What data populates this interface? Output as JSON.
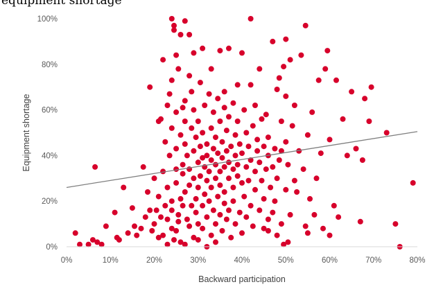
{
  "chart_data": {
    "type": "scatter",
    "title": "equipment shortage",
    "xlabel": "Backward participation",
    "ylabel": "Equipment shortage",
    "xlim": [
      0,
      0.8
    ],
    "ylim": [
      0,
      1
    ],
    "x_ticks": [
      "0%",
      "10%",
      "20%",
      "30%",
      "40%",
      "50%",
      "60%",
      "70%",
      "80%"
    ],
    "y_ticks": [
      "0%",
      "20%",
      "40%",
      "60%",
      "80%",
      "100%"
    ],
    "grid": false,
    "legend": "none",
    "point_color": "#d7002b",
    "trendline_color": "#7f7f7f",
    "trendline": {
      "x": [
        0,
        0.8
      ],
      "y": [
        0.26,
        0.505
      ]
    },
    "points": [
      [
        0.02,
        0.06
      ],
      [
        0.03,
        0.01
      ],
      [
        0.05,
        0.01
      ],
      [
        0.06,
        0.03
      ],
      [
        0.065,
        0.35
      ],
      [
        0.07,
        0.02
      ],
      [
        0.08,
        0.01
      ],
      [
        0.09,
        0.09
      ],
      [
        0.11,
        0.15
      ],
      [
        0.115,
        0.04
      ],
      [
        0.12,
        0.03
      ],
      [
        0.13,
        0.26
      ],
      [
        0.14,
        0.06
      ],
      [
        0.15,
        0.17
      ],
      [
        0.155,
        0.09
      ],
      [
        0.16,
        0.05
      ],
      [
        0.17,
        0.08
      ],
      [
        0.175,
        0.35
      ],
      [
        0.18,
        0.13
      ],
      [
        0.185,
        0.24
      ],
      [
        0.19,
        0.7
      ],
      [
        0.19,
        0.16
      ],
      [
        0.195,
        0.07
      ],
      [
        0.2,
        0.3
      ],
      [
        0.2,
        0.1
      ],
      [
        0.205,
        0.16
      ],
      [
        0.21,
        0.04
      ],
      [
        0.21,
        0.55
      ],
      [
        0.21,
        0.22
      ],
      [
        0.215,
        0.13
      ],
      [
        0.215,
        0.56
      ],
      [
        0.22,
        0.05
      ],
      [
        0.22,
        0.33
      ],
      [
        0.22,
        0.82
      ],
      [
        0.225,
        0.18
      ],
      [
        0.225,
        0.46
      ],
      [
        0.23,
        0.01
      ],
      [
        0.23,
        0.12
      ],
      [
        0.23,
        0.62
      ],
      [
        0.23,
        0.26
      ],
      [
        0.235,
        0.67
      ],
      [
        0.235,
        0.4
      ],
      [
        0.24,
        0.08
      ],
      [
        0.24,
        0.2
      ],
      [
        0.24,
        0.73
      ],
      [
        0.24,
        0.16
      ],
      [
        0.24,
        0.52
      ],
      [
        0.24,
        1.0
      ],
      [
        0.245,
        0.95
      ],
      [
        0.245,
        0.97
      ],
      [
        0.245,
        0.03
      ],
      [
        0.25,
        0.28
      ],
      [
        0.25,
        0.43
      ],
      [
        0.25,
        0.07
      ],
      [
        0.25,
        0.59
      ],
      [
        0.25,
        0.34
      ],
      [
        0.25,
        0.84
      ],
      [
        0.255,
        0.14
      ],
      [
        0.255,
        0.78
      ],
      [
        0.255,
        0.11
      ],
      [
        0.26,
        0.21
      ],
      [
        0.26,
        0.49
      ],
      [
        0.26,
        0.93
      ],
      [
        0.26,
        0.02
      ],
      [
        0.265,
        0.32
      ],
      [
        0.265,
        0.61
      ],
      [
        0.265,
        0.18
      ],
      [
        0.265,
        0.36
      ],
      [
        0.27,
        0.99
      ],
      [
        0.27,
        0.45
      ],
      [
        0.27,
        0.64
      ],
      [
        0.27,
        0.24
      ],
      [
        0.27,
        0.01
      ],
      [
        0.27,
        0.55
      ],
      [
        0.275,
        0.12
      ],
      [
        0.275,
        0.4
      ],
      [
        0.28,
        0.75
      ],
      [
        0.28,
        0.27
      ],
      [
        0.28,
        0.09
      ],
      [
        0.28,
        0.93
      ],
      [
        0.28,
        0.34
      ],
      [
        0.285,
        0.52
      ],
      [
        0.285,
        0.18
      ],
      [
        0.285,
        0.68
      ],
      [
        0.29,
        0.42
      ],
      [
        0.29,
        0.04
      ],
      [
        0.29,
        0.85
      ],
      [
        0.29,
        0.3
      ],
      [
        0.29,
        0.6
      ],
      [
        0.295,
        0.15
      ],
      [
        0.295,
        0.21
      ],
      [
        0.295,
        0.48
      ],
      [
        0.3,
        0.37
      ],
      [
        0.3,
        0.1
      ],
      [
        0.3,
        0.26
      ],
      [
        0.3,
        0.55
      ],
      [
        0.3,
        0.03
      ],
      [
        0.305,
        0.44
      ],
      [
        0.305,
        0.31
      ],
      [
        0.305,
        0.72
      ],
      [
        0.31,
        0.18
      ],
      [
        0.31,
        0.39
      ],
      [
        0.31,
        0.87
      ],
      [
        0.31,
        0.08
      ],
      [
        0.31,
        0.5
      ],
      [
        0.315,
        0.23
      ],
      [
        0.315,
        0.35
      ],
      [
        0.315,
        0.62
      ],
      [
        0.32,
        0.13
      ],
      [
        0.32,
        0.0
      ],
      [
        0.32,
        0.29
      ],
      [
        0.32,
        0.45
      ],
      [
        0.32,
        0.4
      ],
      [
        0.325,
        0.2
      ],
      [
        0.325,
        0.67
      ],
      [
        0.325,
        0.33
      ],
      [
        0.33,
        0.05
      ],
      [
        0.33,
        0.52
      ],
      [
        0.33,
        0.26
      ],
      [
        0.33,
        0.78
      ],
      [
        0.33,
        0.38
      ],
      [
        0.335,
        0.16
      ],
      [
        0.335,
        0.43
      ],
      [
        0.335,
        0.59
      ],
      [
        0.34,
        0.1
      ],
      [
        0.34,
        0.3
      ],
      [
        0.34,
        0.36
      ],
      [
        0.34,
        0.48
      ],
      [
        0.34,
        0.02
      ],
      [
        0.345,
        0.22
      ],
      [
        0.345,
        0.41
      ],
      [
        0.345,
        0.65
      ],
      [
        0.35,
        0.14
      ],
      [
        0.35,
        0.33
      ],
      [
        0.35,
        0.55
      ],
      [
        0.35,
        0.86
      ],
      [
        0.35,
        0.27
      ],
      [
        0.355,
        0.39
      ],
      [
        0.355,
        0.07
      ],
      [
        0.355,
        0.46
      ],
      [
        0.36,
        0.19
      ],
      [
        0.36,
        0.61
      ],
      [
        0.36,
        0.35
      ],
      [
        0.36,
        0.24
      ],
      [
        0.36,
        0.68
      ],
      [
        0.365,
        0.51
      ],
      [
        0.365,
        0.12
      ],
      [
        0.365,
        0.42
      ],
      [
        0.37,
        0.3
      ],
      [
        0.37,
        0.37
      ],
      [
        0.37,
        0.87
      ],
      [
        0.37,
        0.16
      ],
      [
        0.37,
        0.57
      ],
      [
        0.375,
        0.04
      ],
      [
        0.375,
        0.44
      ],
      [
        0.38,
        0.26
      ],
      [
        0.38,
        0.34
      ],
      [
        0.38,
        0.63
      ],
      [
        0.38,
        0.2
      ],
      [
        0.385,
        0.49
      ],
      [
        0.385,
        0.1
      ],
      [
        0.385,
        0.4
      ],
      [
        0.39,
        0.71
      ],
      [
        0.39,
        0.31
      ],
      [
        0.39,
        0.55
      ],
      [
        0.39,
        0.36
      ],
      [
        0.395,
        0.15
      ],
      [
        0.395,
        0.45
      ],
      [
        0.4,
        0.28
      ],
      [
        0.4,
        0.85
      ],
      [
        0.4,
        0.06
      ],
      [
        0.4,
        0.41
      ],
      [
        0.405,
        0.6
      ],
      [
        0.405,
        0.22
      ],
      [
        0.41,
        0.35
      ],
      [
        0.41,
        0.5
      ],
      [
        0.41,
        0.13
      ],
      [
        0.415,
        0.44
      ],
      [
        0.415,
        0.29
      ],
      [
        0.42,
        0.71
      ],
      [
        0.42,
        1.0
      ],
      [
        0.42,
        0.38
      ],
      [
        0.42,
        0.18
      ],
      [
        0.425,
        0.53
      ],
      [
        0.425,
        0.09
      ],
      [
        0.43,
        0.33
      ],
      [
        0.43,
        0.62
      ],
      [
        0.43,
        0.25
      ],
      [
        0.435,
        0.47
      ],
      [
        0.435,
        0.42
      ],
      [
        0.44,
        0.16
      ],
      [
        0.44,
        0.37
      ],
      [
        0.44,
        0.78
      ],
      [
        0.445,
        0.56
      ],
      [
        0.445,
        0.29
      ],
      [
        0.45,
        0.08
      ],
      [
        0.45,
        0.44
      ],
      [
        0.45,
        0.21
      ],
      [
        0.455,
        0.34
      ],
      [
        0.455,
        0.58
      ],
      [
        0.46,
        0.12
      ],
      [
        0.46,
        0.4
      ],
      [
        0.46,
        0.48
      ],
      [
        0.46,
        0.07
      ],
      [
        0.465,
        0.26
      ],
      [
        0.47,
        0.35
      ],
      [
        0.47,
        0.15
      ],
      [
        0.47,
        0.9
      ],
      [
        0.475,
        0.43
      ],
      [
        0.475,
        0.2
      ],
      [
        0.48,
        0.69
      ],
      [
        0.48,
        0.3
      ],
      [
        0.48,
        0.05
      ],
      [
        0.485,
        0.38
      ],
      [
        0.485,
        0.74
      ],
      [
        0.49,
        0.42
      ],
      [
        0.49,
        0.1
      ],
      [
        0.49,
        0.55
      ],
      [
        0.495,
        0.79
      ],
      [
        0.495,
        0.01
      ],
      [
        0.5,
        0.25
      ],
      [
        0.5,
        0.91
      ],
      [
        0.5,
        0.46
      ],
      [
        0.5,
        0.66
      ],
      [
        0.505,
        0.02
      ],
      [
        0.505,
        0.36
      ],
      [
        0.51,
        0.82
      ],
      [
        0.51,
        0.14
      ],
      [
        0.515,
        0.53
      ],
      [
        0.52,
        0.29
      ],
      [
        0.52,
        0.62
      ],
      [
        0.525,
        0.24
      ],
      [
        0.53,
        0.42
      ],
      [
        0.535,
        0.84
      ],
      [
        0.54,
        0.34
      ],
      [
        0.545,
        0.09
      ],
      [
        0.545,
        0.97
      ],
      [
        0.55,
        0.06
      ],
      [
        0.55,
        0.49
      ],
      [
        0.555,
        0.21
      ],
      [
        0.56,
        0.59
      ],
      [
        0.565,
        0.14
      ],
      [
        0.57,
        0.3
      ],
      [
        0.575,
        0.73
      ],
      [
        0.58,
        0.41
      ],
      [
        0.585,
        0.08
      ],
      [
        0.59,
        0.78
      ],
      [
        0.595,
        0.86
      ],
      [
        0.6,
        0.47
      ],
      [
        0.6,
        0.05
      ],
      [
        0.61,
        0.18
      ],
      [
        0.615,
        0.73
      ],
      [
        0.62,
        0.13
      ],
      [
        0.63,
        0.56
      ],
      [
        0.64,
        0.4
      ],
      [
        0.65,
        0.68
      ],
      [
        0.66,
        0.43
      ],
      [
        0.67,
        0.11
      ],
      [
        0.675,
        0.38
      ],
      [
        0.68,
        0.65
      ],
      [
        0.69,
        0.55
      ],
      [
        0.695,
        0.7
      ],
      [
        0.73,
        0.5
      ],
      [
        0.75,
        0.1
      ],
      [
        0.76,
        0.0
      ],
      [
        0.79,
        0.28
      ]
    ]
  }
}
